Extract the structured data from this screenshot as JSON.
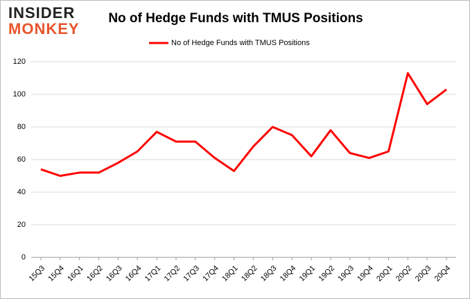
{
  "logo": {
    "line1": "INSIDER",
    "line2": "MONKEY"
  },
  "chart_data": {
    "type": "line",
    "title": "No of Hedge Funds with TMUS Positions",
    "categories": [
      "15Q3",
      "15Q4",
      "16Q1",
      "16Q2",
      "16Q3",
      "16Q4",
      "17Q1",
      "17Q2",
      "17Q3",
      "17Q4",
      "18Q1",
      "18Q2",
      "18Q3",
      "18Q4",
      "19Q1",
      "19Q2",
      "19Q3",
      "19Q4",
      "20Q1",
      "20Q2",
      "20Q3",
      "20Q4"
    ],
    "series": [
      {
        "name": "No of Hedge Funds with TMUS Positions",
        "color": "#ff0000",
        "values": [
          54,
          50,
          52,
          52,
          58,
          65,
          77,
          71,
          71,
          61,
          53,
          68,
          80,
          75,
          62,
          78,
          64,
          61,
          65,
          113,
          94,
          103
        ]
      }
    ],
    "ylim": [
      0,
      120
    ],
    "yticks": [
      0,
      20,
      40,
      60,
      80,
      100,
      120
    ],
    "grid": true,
    "legend": "top"
  }
}
